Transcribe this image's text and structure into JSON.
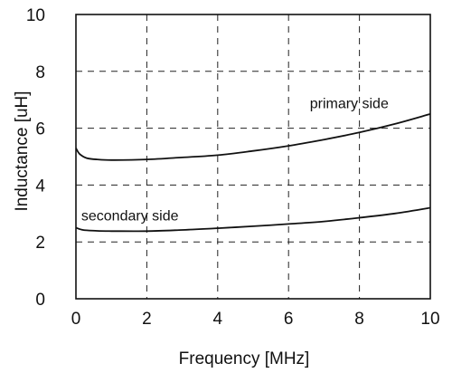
{
  "chart_data": {
    "type": "line",
    "title": "",
    "xlabel": "Frequency [MHz]",
    "ylabel": "Inductance [uH]",
    "xlim": [
      0,
      10
    ],
    "ylim": [
      0,
      10
    ],
    "x_ticks": [
      "0",
      "2",
      "4",
      "6",
      "8",
      "10"
    ],
    "y_ticks": [
      "0",
      "2",
      "4",
      "6",
      "8",
      "10"
    ],
    "grid": true,
    "grid_style": "dashed",
    "legend": "none",
    "series": [
      {
        "name": "primary side",
        "color": "#111111",
        "x": [
          0,
          0.1,
          0.3,
          0.6,
          1,
          2,
          3,
          4,
          5,
          6,
          7,
          8,
          9,
          10
        ],
        "y": [
          5.3,
          5.1,
          4.95,
          4.9,
          4.88,
          4.9,
          4.97,
          5.05,
          5.2,
          5.38,
          5.6,
          5.85,
          6.15,
          6.5
        ]
      },
      {
        "name": "secondary side",
        "color": "#111111",
        "x": [
          0,
          0.2,
          0.6,
          1,
          2,
          3,
          4,
          5,
          6,
          7,
          8,
          9,
          10
        ],
        "y": [
          2.5,
          2.42,
          2.39,
          2.38,
          2.38,
          2.42,
          2.48,
          2.55,
          2.63,
          2.72,
          2.85,
          3.0,
          3.2
        ]
      }
    ]
  }
}
